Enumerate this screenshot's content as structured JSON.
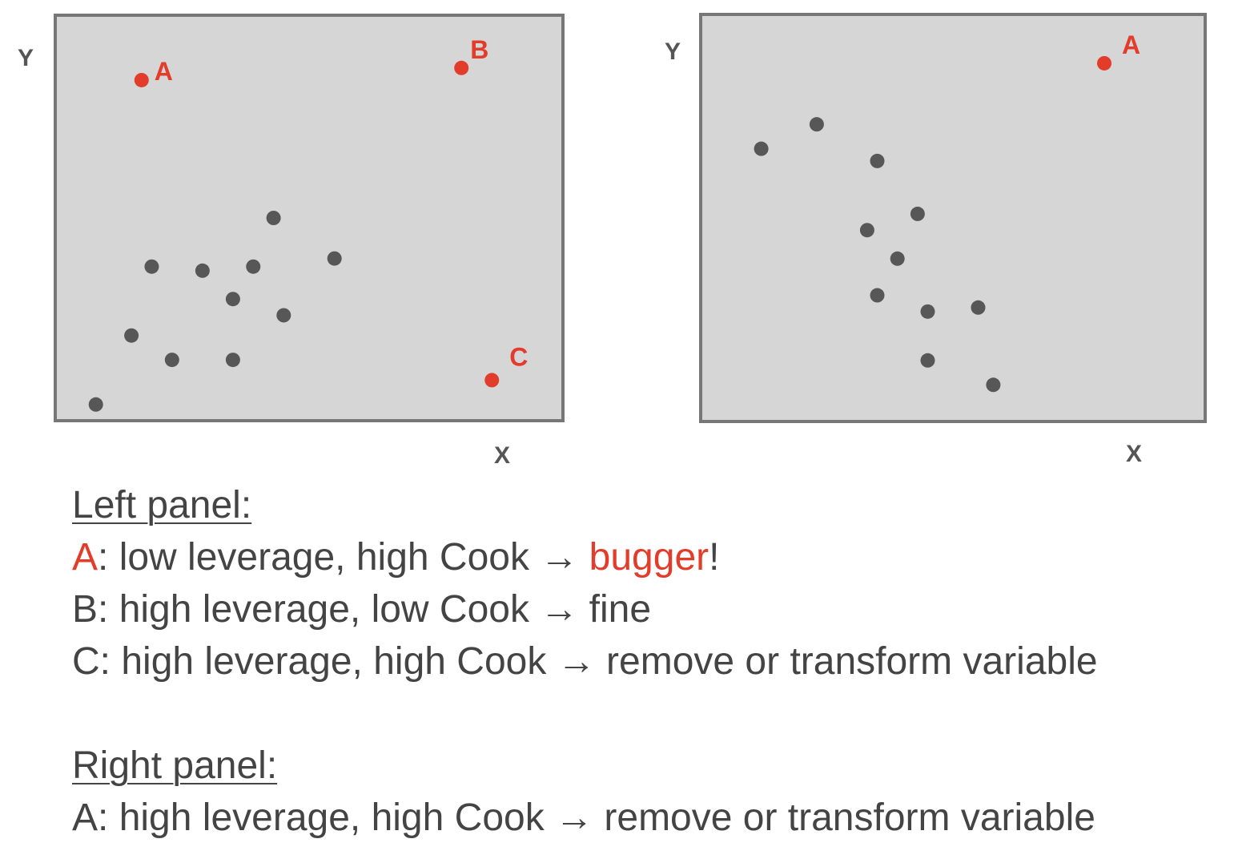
{
  "colors": {
    "panel_fill": "#d6d6d6",
    "panel_border": "#777777",
    "point": "#575757",
    "highlight": "#e23c2a",
    "text": "#444444"
  },
  "chart_data": [
    {
      "type": "scatter",
      "xlabel": "X",
      "ylabel": "Y",
      "xlim": [
        0,
        100
      ],
      "ylim": [
        0,
        100
      ],
      "grid": false,
      "points": [
        {
          "x": 8,
          "y": 4
        },
        {
          "x": 15,
          "y": 21
        },
        {
          "x": 23,
          "y": 15
        },
        {
          "x": 35,
          "y": 15
        },
        {
          "x": 19,
          "y": 38
        },
        {
          "x": 29,
          "y": 37
        },
        {
          "x": 39,
          "y": 38
        },
        {
          "x": 35,
          "y": 30
        },
        {
          "x": 43,
          "y": 50
        },
        {
          "x": 45,
          "y": 26
        },
        {
          "x": 55,
          "y": 40
        }
      ],
      "highlighted": [
        {
          "label": "A",
          "x": 17,
          "y": 84
        },
        {
          "label": "B",
          "x": 80,
          "y": 87
        },
        {
          "label": "C",
          "x": 86,
          "y": 10
        }
      ]
    },
    {
      "type": "scatter",
      "xlabel": "X",
      "ylabel": "Y",
      "xlim": [
        0,
        100
      ],
      "ylim": [
        0,
        100
      ],
      "grid": false,
      "points": [
        {
          "x": 12,
          "y": 67
        },
        {
          "x": 23,
          "y": 73
        },
        {
          "x": 35,
          "y": 64
        },
        {
          "x": 43,
          "y": 51
        },
        {
          "x": 33,
          "y": 47
        },
        {
          "x": 39,
          "y": 40
        },
        {
          "x": 35,
          "y": 31
        },
        {
          "x": 45,
          "y": 27
        },
        {
          "x": 55,
          "y": 28
        },
        {
          "x": 45,
          "y": 15
        },
        {
          "x": 58,
          "y": 9
        }
      ],
      "highlighted": [
        {
          "label": "A",
          "x": 80,
          "y": 88
        }
      ]
    }
  ],
  "notes": {
    "left_heading": "Left panel:",
    "left_a_letter": "A",
    "left_a_text": ": low leverage, high Cook → ",
    "left_a_verdict": "bugger",
    "left_a_end": "!",
    "left_b": "B: high leverage, low Cook → fine",
    "left_c": "C: high leverage, high Cook → remove or transform variable",
    "right_heading": "Right panel:",
    "right_a": "A: high leverage, high Cook → remove or transform variable"
  }
}
